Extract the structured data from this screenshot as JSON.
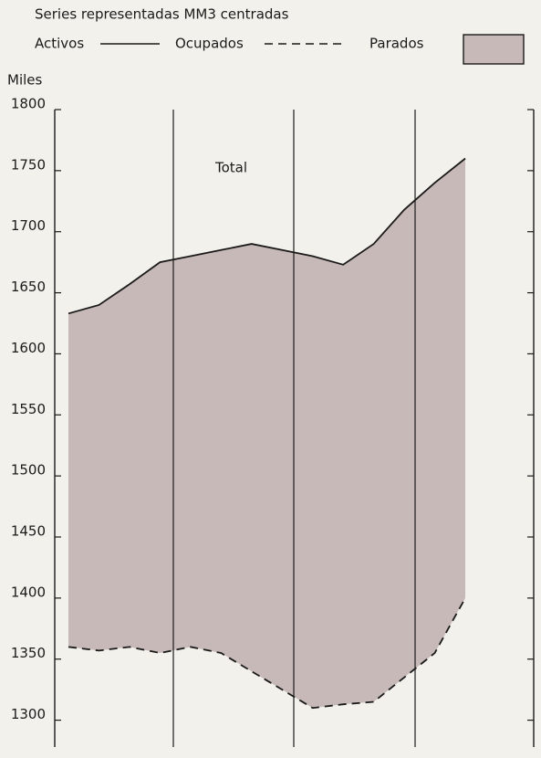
{
  "chart_data": {
    "type": "line",
    "title": "Series representadas MM3 centradas",
    "y_label": "Miles",
    "annotation": "Total",
    "categories": [
      null,
      null,
      null,
      null,
      null,
      null,
      null,
      null,
      null,
      null,
      null,
      null,
      null,
      null
    ],
    "series": [
      {
        "name": "Activos",
        "color": "#1a1a1a",
        "dashed": false,
        "values": [
          1633,
          1640,
          1657,
          1675,
          1680,
          1685,
          1690,
          1685,
          1680,
          1673,
          1690,
          1718,
          1740,
          1760
        ]
      },
      {
        "name": "Ocupados",
        "color": "#1a1a1a",
        "dashed": true,
        "values": [
          1360,
          1357,
          1360,
          1355,
          1360,
          1355,
          1340,
          1325,
          1310,
          1313,
          1315,
          1335,
          1355,
          1400
        ]
      }
    ],
    "area_name": "Parados",
    "area_color": "#c7b9b8",
    "ylim": [
      1278,
      1800
    ],
    "yticks": [
      1300,
      1350,
      1400,
      1450,
      1500,
      1550,
      1600,
      1650,
      1700,
      1750,
      1800
    ]
  }
}
